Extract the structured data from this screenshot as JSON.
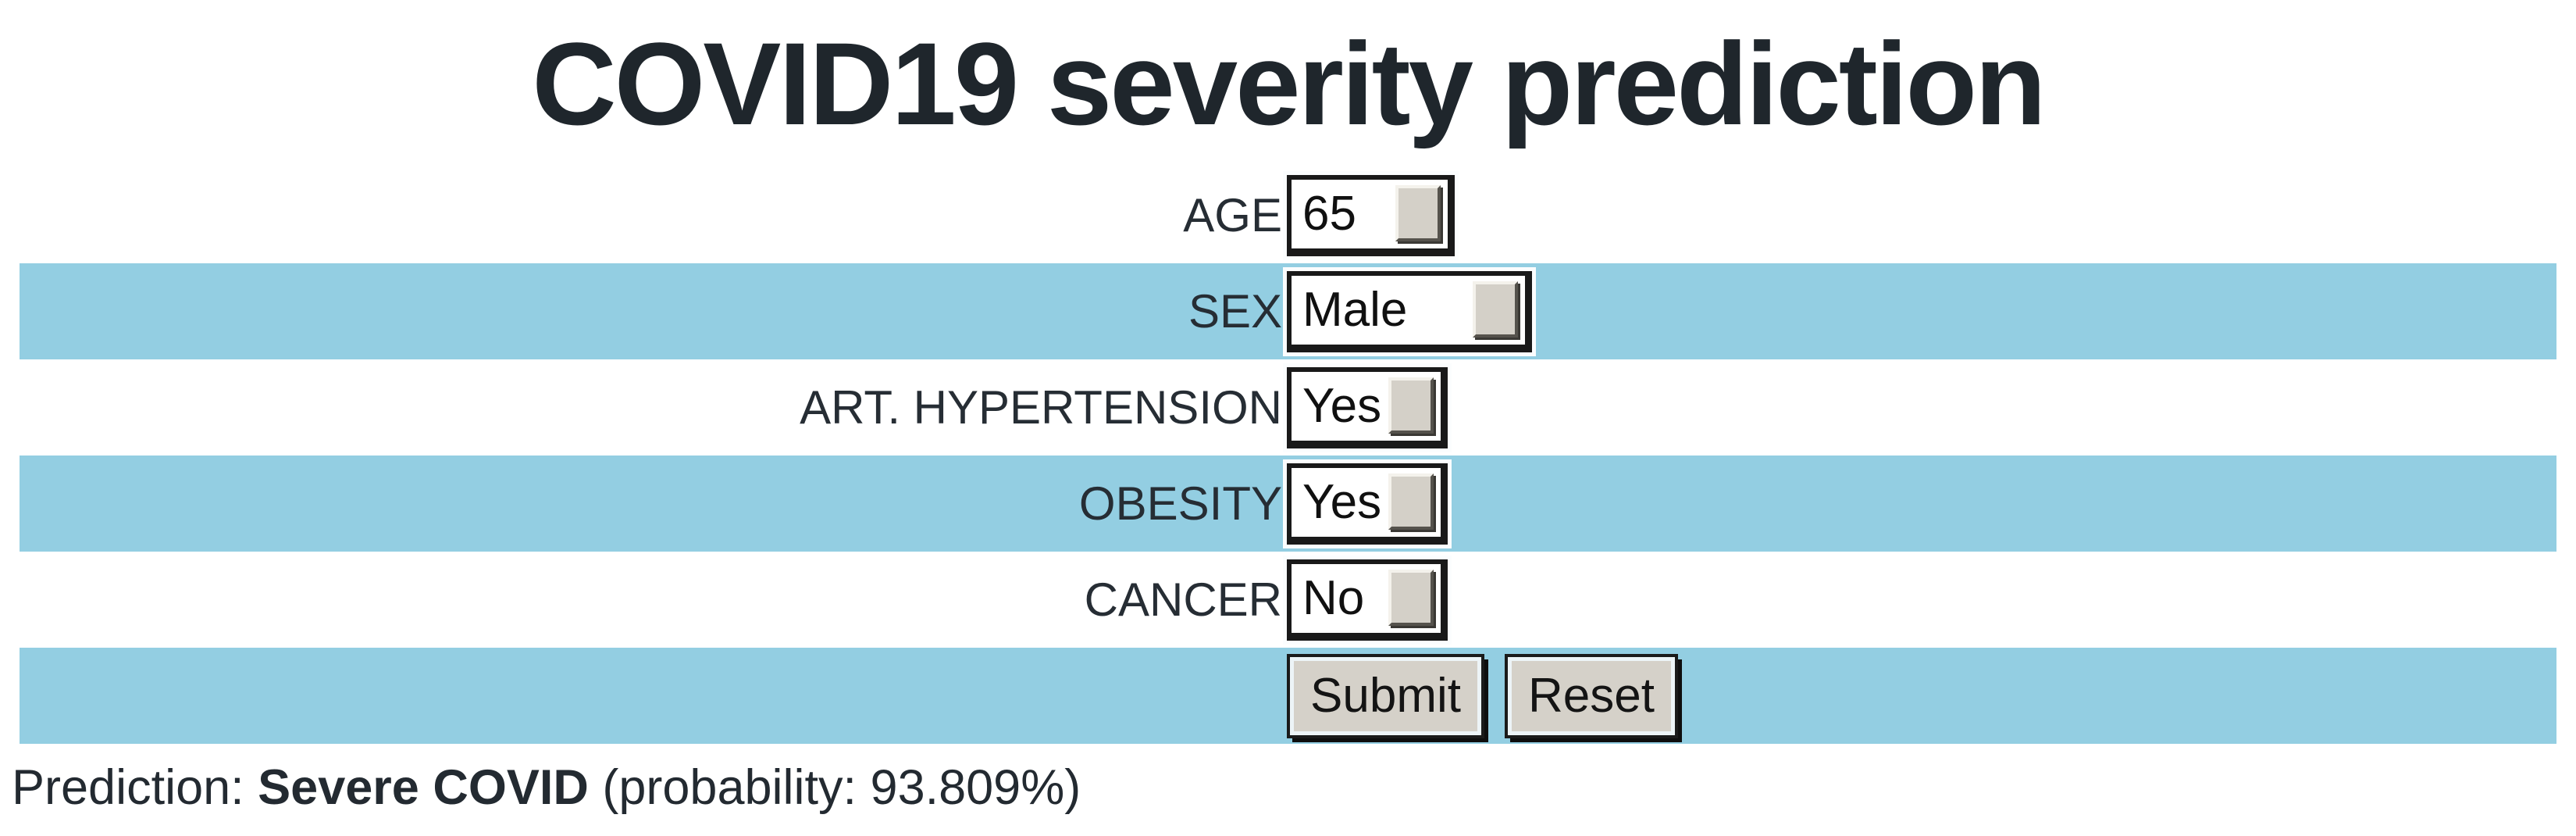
{
  "title": "COVID19 severity prediction",
  "form": {
    "rows": [
      {
        "label": "AGE",
        "value": "65",
        "type": "number-input"
      },
      {
        "label": "SEX",
        "value": "Male",
        "type": "select"
      },
      {
        "label": "ART. HYPERTENSION",
        "value": "Yes",
        "type": "select"
      },
      {
        "label": "OBESITY",
        "value": "Yes",
        "type": "select"
      },
      {
        "label": "CANCER",
        "value": "No",
        "type": "select"
      }
    ],
    "submit_label": "Submit",
    "reset_label": "Reset"
  },
  "result": {
    "prefix": "Prediction: ",
    "prediction": "Severe COVID",
    "probability_text": " (probability: 93.809%)"
  },
  "colors": {
    "band_blue": "#93cee2",
    "title_text": "#1f262c",
    "control_face": "#d4d0c8",
    "border_dark": "#191919"
  }
}
